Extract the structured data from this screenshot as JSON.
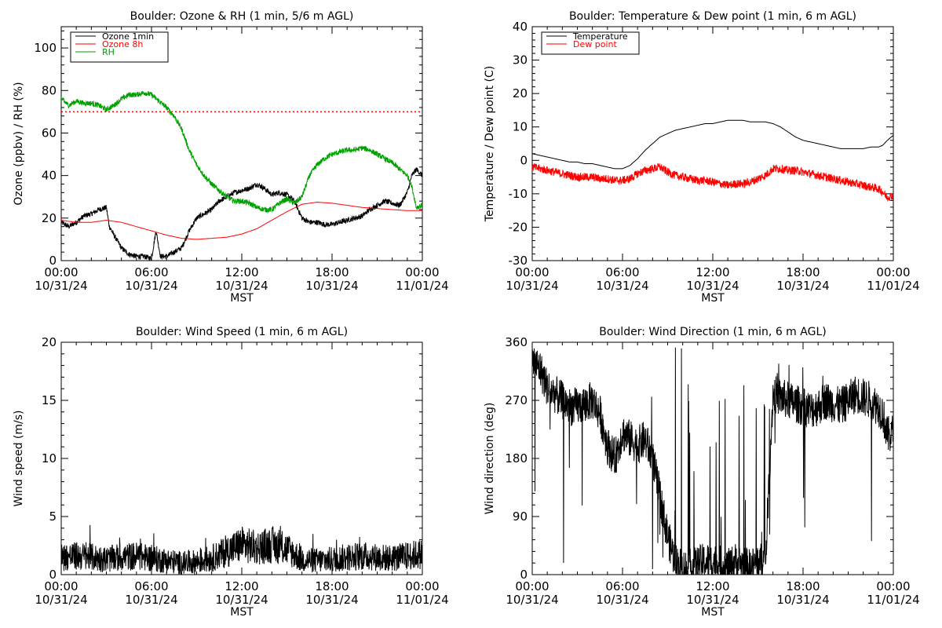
{
  "x_time_labels": [
    "00:00",
    "06:00",
    "12:00",
    "18:00",
    "00:00"
  ],
  "x_date_labels": [
    "10/31/24",
    "10/31/24",
    "10/31/24",
    "10/31/24",
    "11/01/24"
  ],
  "x_axis_label": "MST",
  "colors": {
    "black": "#000000",
    "red": "#ff0000",
    "green": "#00a000"
  },
  "chart_data": [
    {
      "type": "line",
      "title": "Boulder: Ozone & RH (1 min, 5/6 m AGL)",
      "ylabel": "Ozone (ppbv) / RH (%)",
      "xlim": [
        "10/31/24 00:00",
        "11/01/24 00:00"
      ],
      "ylim": [
        0,
        110
      ],
      "yticks": [
        0,
        20,
        40,
        60,
        80,
        100
      ],
      "legend_position": "top-left",
      "reference_line": {
        "y": 70,
        "color": "#ff0000",
        "style": "dotted"
      },
      "series": [
        {
          "name": "Ozone 1min",
          "color": "#000000",
          "noisy": true,
          "x": [
            0,
            0.5,
            1,
            1.5,
            2,
            2.5,
            3,
            3.2,
            3.5,
            4,
            4.5,
            5,
            5.5,
            6,
            6.3,
            6.6,
            7,
            7.5,
            8,
            8.5,
            9,
            9.5,
            10,
            10.5,
            11,
            11.5,
            12,
            12.5,
            13,
            13.5,
            14,
            14.5,
            15,
            15.5,
            16,
            16.5,
            17,
            17.5,
            18,
            18.5,
            19,
            19.5,
            20,
            20.5,
            21,
            21.5,
            22,
            22.5,
            23,
            23.3,
            23.6,
            24
          ],
          "y": [
            18,
            16,
            18,
            21,
            22,
            24,
            25,
            16,
            12,
            6,
            3,
            2,
            2,
            1,
            14,
            2,
            2,
            4,
            6,
            14,
            20,
            22,
            24,
            28,
            30,
            32,
            33,
            34,
            36,
            34,
            31,
            32,
            31,
            28,
            20,
            18,
            18,
            17,
            17,
            18,
            19,
            20,
            21,
            24,
            26,
            28,
            27,
            26,
            32,
            40,
            43,
            40
          ]
        },
        {
          "name": "Ozone 8h",
          "color": "#ff0000",
          "x": [
            0,
            1,
            2,
            3,
            4,
            5,
            6,
            7,
            8,
            9,
            10,
            11,
            12,
            13,
            14,
            15,
            16,
            17,
            18,
            19,
            20,
            21,
            22,
            23,
            24
          ],
          "y": [
            19,
            18,
            18,
            19,
            18,
            16,
            14,
            12,
            10.5,
            10,
            10.5,
            11,
            12.5,
            15,
            19,
            23,
            26.5,
            27.5,
            27,
            26,
            25,
            24.5,
            24,
            23.5,
            23.5
          ]
        },
        {
          "name": "RH",
          "color": "#00a000",
          "noisy": true,
          "x": [
            0,
            0.5,
            1,
            1.5,
            2,
            2.5,
            3,
            3.5,
            4,
            4.5,
            5,
            5.5,
            6,
            6.5,
            7,
            7.5,
            8,
            8.5,
            9,
            9.5,
            10,
            10.5,
            11,
            11.5,
            12,
            12.5,
            13,
            13.5,
            14,
            14.5,
            15,
            15.5,
            16,
            16.5,
            17,
            17.5,
            18,
            18.5,
            19,
            19.5,
            20,
            20.5,
            21,
            21.5,
            22,
            22.5,
            23,
            23.3,
            23.6,
            24
          ],
          "y": [
            76,
            73,
            75,
            74,
            74,
            73,
            71,
            73,
            76,
            78,
            78,
            79,
            78,
            75,
            72,
            68,
            62,
            52,
            45,
            40,
            36,
            33,
            30,
            28,
            28,
            27,
            25,
            24,
            24,
            27,
            29,
            27,
            30,
            40,
            45,
            48,
            50,
            51,
            52,
            52,
            53,
            52,
            50,
            48,
            46,
            43,
            40,
            35,
            25,
            26
          ]
        }
      ]
    },
    {
      "type": "line",
      "title": "Boulder: Temperature & Dew point (1 min, 6 m AGL)",
      "ylabel": "Temperature / Dew point (C)",
      "xlim": [
        "10/31/24 00:00",
        "11/01/24 00:00"
      ],
      "ylim": [
        -30,
        40
      ],
      "yticks": [
        -30,
        -20,
        -10,
        0,
        10,
        20,
        30,
        40
      ],
      "legend_position": "top-left",
      "series": [
        {
          "name": "Temperature",
          "color": "#000000",
          "x": [
            0,
            0.5,
            1,
            1.5,
            2,
            2.5,
            3,
            3.5,
            4,
            4.5,
            5,
            5.5,
            6,
            6.5,
            7,
            7.5,
            8,
            8.5,
            9,
            9.5,
            10,
            10.5,
            11,
            11.5,
            12,
            12.5,
            13,
            13.5,
            14,
            14.5,
            15,
            15.5,
            16,
            16.5,
            17,
            17.5,
            18,
            18.5,
            19,
            19.5,
            20,
            20.5,
            21,
            21.5,
            22,
            22.5,
            23,
            23.3,
            23.6,
            24
          ],
          "y": [
            2,
            1.5,
            1,
            0.5,
            0,
            -0.5,
            -0.5,
            -1,
            -1,
            -1.5,
            -2,
            -2.5,
            -2.5,
            -1.5,
            0.5,
            3,
            5,
            7,
            8,
            9,
            9.5,
            10,
            10.5,
            11,
            11,
            11.5,
            12,
            12,
            12,
            11.5,
            11.5,
            11.5,
            11,
            10,
            8.5,
            7,
            6,
            5.5,
            5,
            4.5,
            4,
            3.5,
            3.5,
            3.5,
            3.5,
            4,
            4,
            4.5,
            6,
            7.5
          ]
        },
        {
          "name": "Dew point",
          "color": "#ff0000",
          "noisy": true,
          "x": [
            0,
            0.5,
            1,
            1.5,
            2,
            2.5,
            3,
            3.5,
            4,
            4.5,
            5,
            5.5,
            6,
            6.5,
            7,
            7.5,
            8,
            8.5,
            9,
            9.5,
            10,
            10.5,
            11,
            11.5,
            12,
            12.5,
            13,
            13.5,
            14,
            14.5,
            15,
            15.5,
            16,
            16.5,
            17,
            17.5,
            18,
            18.5,
            19,
            19.5,
            20,
            20.5,
            21,
            21.5,
            22,
            22.5,
            23,
            23.3,
            23.6,
            24
          ],
          "y": [
            -2,
            -2.5,
            -3,
            -3.5,
            -4,
            -4.5,
            -5,
            -5,
            -5,
            -5.5,
            -5.5,
            -6,
            -6,
            -5.5,
            -4,
            -3,
            -2.5,
            -2,
            -3.5,
            -4.5,
            -5,
            -5.5,
            -6,
            -6,
            -6.5,
            -7,
            -7.5,
            -7,
            -7,
            -6.5,
            -5.5,
            -4.5,
            -2.5,
            -2.5,
            -3,
            -3,
            -3.5,
            -4,
            -4.5,
            -5,
            -5.5,
            -6,
            -6.5,
            -7,
            -7.5,
            -8,
            -8.5,
            -9.5,
            -11,
            -10.5
          ]
        }
      ]
    },
    {
      "type": "line",
      "title": "Boulder: Wind Speed (1 min, 6 m AGL)",
      "ylabel": "Wind speed (m/s)",
      "xlim": [
        "10/31/24 00:00",
        "11/01/24 00:00"
      ],
      "ylim": [
        0,
        20
      ],
      "yticks": [
        0,
        5,
        10,
        15,
        20
      ],
      "series": [
        {
          "color": "#000000",
          "noisy": true,
          "spiky": true,
          "x": [
            0,
            1,
            2,
            3,
            4,
            5,
            6,
            7,
            8,
            9,
            10,
            11,
            12,
            13,
            14,
            15,
            16,
            17,
            18,
            19,
            20,
            21,
            22,
            23,
            24
          ],
          "y": [
            1.5,
            1.6,
            1.5,
            1.3,
            1.5,
            1.6,
            1.4,
            1.2,
            1.0,
            1.1,
            1.4,
            2.0,
            2.6,
            2.3,
            2.6,
            2.2,
            1.3,
            1.2,
            1.3,
            1.5,
            1.6,
            1.5,
            1.4,
            1.6,
            1.8
          ]
        }
      ]
    },
    {
      "type": "line",
      "title": "Boulder: Wind Direction (1 min, 6 m AGL)",
      "ylabel": "Wind direction (deg)",
      "xlim": [
        "10/31/24 00:00",
        "11/01/24 00:00"
      ],
      "ylim": [
        0,
        360
      ],
      "yticks": [
        0,
        90,
        180,
        270,
        360
      ],
      "series": [
        {
          "color": "#000000",
          "noisy": true,
          "direction": true,
          "x": [
            0,
            0.5,
            1,
            1.5,
            2,
            2.5,
            3,
            3.5,
            4,
            4.5,
            5,
            5.5,
            6,
            6.5,
            7,
            7.5,
            8,
            8.5,
            9,
            9.5,
            10,
            10.5,
            11,
            11.5,
            12,
            12.5,
            13,
            13.5,
            14,
            14.5,
            15,
            15.5,
            16,
            16.5,
            17,
            17.5,
            18,
            18.5,
            19,
            19.5,
            20,
            20.5,
            21,
            21.5,
            22,
            22.5,
            23,
            23.3,
            23.6,
            24
          ],
          "y": [
            330,
            320,
            290,
            280,
            270,
            260,
            260,
            265,
            270,
            250,
            200,
            180,
            220,
            210,
            200,
            210,
            180,
            120,
            60,
            20,
            10,
            10,
            15,
            20,
            20,
            15,
            10,
            20,
            15,
            10,
            20,
            20,
            280,
            275,
            270,
            265,
            260,
            255,
            260,
            270,
            265,
            260,
            270,
            280,
            275,
            270,
            260,
            250,
            215,
            220
          ]
        }
      ]
    }
  ]
}
